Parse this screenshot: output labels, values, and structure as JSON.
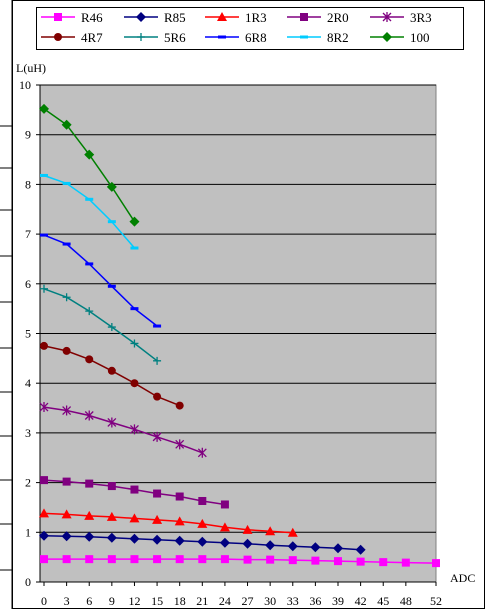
{
  "chart_data": {
    "type": "line",
    "title": "",
    "xlabel": "ADC",
    "ylabel": "L(uH)",
    "xlim": [
      0,
      52
    ],
    "ylim": [
      0,
      10
    ],
    "xticks": [
      0,
      3,
      6,
      9,
      12,
      15,
      18,
      21,
      24,
      27,
      30,
      33,
      36,
      39,
      42,
      45,
      48,
      52
    ],
    "yticks": [
      0,
      1,
      2,
      3,
      4,
      5,
      6,
      7,
      8,
      9,
      10
    ],
    "grid": "horizontal",
    "plot_background": "#c0c0c0",
    "legend_position": "top",
    "series": [
      {
        "name": "R46",
        "color": "#ff00ff",
        "marker": "square",
        "x": [
          0,
          3,
          6,
          9,
          12,
          15,
          18,
          21,
          24,
          27,
          30,
          33,
          36,
          39,
          42,
          45,
          48,
          52
        ],
        "y": [
          0.46,
          0.46,
          0.46,
          0.46,
          0.46,
          0.46,
          0.46,
          0.46,
          0.46,
          0.45,
          0.45,
          0.44,
          0.43,
          0.42,
          0.41,
          0.4,
          0.39,
          0.38
        ]
      },
      {
        "name": "R85",
        "color": "#000080",
        "marker": "diamond",
        "x": [
          0,
          3,
          6,
          9,
          12,
          15,
          18,
          21,
          24,
          27,
          30,
          33,
          36,
          39,
          42
        ],
        "y": [
          0.93,
          0.92,
          0.91,
          0.89,
          0.87,
          0.85,
          0.83,
          0.81,
          0.79,
          0.77,
          0.74,
          0.72,
          0.7,
          0.68,
          0.65
        ]
      },
      {
        "name": "1R3",
        "color": "#ff0000",
        "marker": "triangle",
        "x": [
          0,
          3,
          6,
          9,
          12,
          15,
          18,
          21,
          24,
          27,
          30,
          33
        ],
        "y": [
          1.38,
          1.36,
          1.33,
          1.31,
          1.28,
          1.25,
          1.22,
          1.17,
          1.1,
          1.05,
          1.02,
          0.99
        ]
      },
      {
        "name": "2R0",
        "color": "#800080",
        "marker": "square",
        "x": [
          0,
          3,
          6,
          9,
          12,
          15,
          18,
          21,
          24
        ],
        "y": [
          2.05,
          2.02,
          1.98,
          1.93,
          1.86,
          1.78,
          1.72,
          1.63,
          1.56
        ]
      },
      {
        "name": "3R3",
        "color": "#800080",
        "marker": "star",
        "x": [
          0,
          3,
          6,
          9,
          12,
          15,
          18,
          21
        ],
        "y": [
          3.52,
          3.45,
          3.35,
          3.21,
          3.07,
          2.92,
          2.77,
          2.6
        ]
      },
      {
        "name": "4R7",
        "color": "#800000",
        "marker": "circle",
        "x": [
          0,
          3,
          6,
          9,
          12,
          15,
          18
        ],
        "y": [
          4.75,
          4.65,
          4.48,
          4.25,
          4.0,
          3.73,
          3.55
        ]
      },
      {
        "name": "5R6",
        "color": "#008080",
        "marker": "plus",
        "x": [
          0,
          3,
          6,
          9,
          12,
          15
        ],
        "y": [
          5.9,
          5.73,
          5.45,
          5.13,
          4.8,
          4.45
        ]
      },
      {
        "name": "6R8",
        "color": "#0000ff",
        "marker": "dash",
        "x": [
          0,
          3,
          6,
          9,
          12,
          15
        ],
        "y": [
          6.98,
          6.8,
          6.4,
          5.95,
          5.5,
          5.15
        ]
      },
      {
        "name": "8R2",
        "color": "#00ccff",
        "marker": "dash",
        "x": [
          0,
          3,
          6,
          9,
          12
        ],
        "y": [
          8.18,
          8.02,
          7.7,
          7.25,
          6.72
        ]
      },
      {
        "name": "100",
        "color": "#008000",
        "marker": "diamond",
        "x": [
          0,
          3,
          6,
          9,
          12
        ],
        "y": [
          9.52,
          9.2,
          8.6,
          7.95,
          7.25
        ]
      }
    ]
  }
}
